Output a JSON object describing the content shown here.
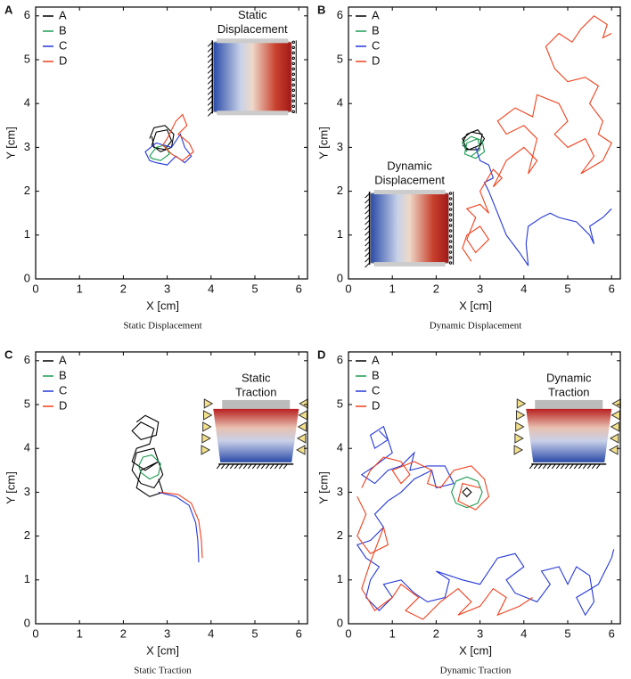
{
  "chart_data": [
    {
      "type": "line",
      "panel": "A",
      "caption": "Static Displacement",
      "xlabel": "X [cm]",
      "ylabel": "Y [cm]",
      "inset_title": [
        "Static",
        "Displacement"
      ],
      "inset_kind": "displacement",
      "xlim": [
        0,
        6.2
      ],
      "ylim": [
        0,
        6.2
      ],
      "xticks": [
        0,
        1,
        2,
        3,
        4,
        5,
        6
      ],
      "yticks": [
        0,
        1,
        2,
        3,
        4,
        5,
        6
      ],
      "legend": "upper left",
      "series": [
        {
          "name": "A",
          "color": "#000000",
          "x": [
            2.6,
            2.7,
            2.95,
            3.15,
            3.1,
            2.85,
            2.65,
            2.75,
            3.0,
            3.1,
            2.95,
            2.7,
            2.65
          ],
          "y": [
            3.2,
            3.45,
            3.5,
            3.3,
            3.0,
            2.9,
            3.05,
            3.35,
            3.4,
            3.15,
            2.95,
            3.0,
            3.25
          ]
        },
        {
          "name": "B",
          "color": "#1a9a50",
          "x": [
            2.6,
            2.75,
            2.95,
            3.05,
            2.85,
            2.65,
            2.6
          ],
          "y": [
            2.8,
            3.0,
            3.05,
            2.85,
            2.7,
            2.75,
            2.8
          ]
        },
        {
          "name": "C",
          "color": "#2438d8",
          "x": [
            2.6,
            2.5,
            2.75,
            3.1,
            3.3,
            3.4,
            3.55,
            3.4,
            3.2,
            3.0,
            2.75,
            2.6
          ],
          "y": [
            2.7,
            2.9,
            3.1,
            3.0,
            3.3,
            3.0,
            2.8,
            2.65,
            2.8,
            2.6,
            2.65,
            2.7
          ]
        },
        {
          "name": "D",
          "color": "#f0401c",
          "x": [
            3.0,
            3.2,
            3.35,
            3.45,
            3.25,
            3.5,
            3.6,
            3.35,
            3.1,
            2.9,
            3.0
          ],
          "y": [
            3.2,
            3.6,
            3.75,
            3.5,
            3.3,
            3.1,
            2.9,
            2.7,
            2.85,
            3.05,
            3.2
          ]
        }
      ]
    },
    {
      "type": "line",
      "panel": "B",
      "caption": "Dynamic Displacement",
      "xlabel": "X [cm]",
      "ylabel": "Y [cm]",
      "inset_title": [
        "Dynamic",
        "Displacement"
      ],
      "inset_kind": "displacement",
      "xlim": [
        0,
        6.2
      ],
      "ylim": [
        0,
        6.2
      ],
      "xticks": [
        0,
        1,
        2,
        3,
        4,
        5,
        6
      ],
      "yticks": [
        0,
        1,
        2,
        3,
        4,
        5,
        6
      ],
      "legend": "upper left",
      "series": [
        {
          "name": "A",
          "color": "#000000",
          "x": [
            2.6,
            2.7,
            2.95,
            3.1,
            2.95,
            2.7,
            2.6,
            2.8,
            3.05,
            3.0,
            2.75,
            2.6
          ],
          "y": [
            3.1,
            3.3,
            3.4,
            3.2,
            2.95,
            2.95,
            3.2,
            3.35,
            3.3,
            3.05,
            2.95,
            3.05
          ]
        },
        {
          "name": "B",
          "color": "#1a9a50",
          "x": [
            2.7,
            2.6,
            2.8,
            3.05,
            3.1,
            2.9,
            2.65,
            2.7,
            2.95,
            3.0,
            2.8
          ],
          "y": [
            2.9,
            3.1,
            3.25,
            3.15,
            2.9,
            2.75,
            2.85,
            3.1,
            3.2,
            2.95,
            2.8
          ]
        },
        {
          "name": "C",
          "color": "#2438d8",
          "x": [
            2.9,
            3.0,
            3.2,
            3.3,
            3.1,
            3.2,
            3.4,
            3.6,
            3.9,
            4.1,
            4.05,
            4.1,
            4.4,
            4.6,
            4.8,
            5.2,
            5.5,
            5.6,
            5.5,
            5.8,
            6.0
          ],
          "y": [
            3.0,
            2.7,
            2.6,
            2.3,
            2.2,
            2.0,
            1.5,
            1.0,
            0.6,
            0.3,
            0.8,
            1.2,
            1.4,
            1.5,
            1.4,
            1.3,
            1.0,
            0.8,
            1.2,
            1.4,
            1.6
          ]
        },
        {
          "name": "D",
          "color": "#f0401c",
          "x": [
            2.8,
            2.6,
            2.7,
            3.0,
            3.2,
            2.9,
            2.7,
            2.9,
            2.7,
            3.0,
            3.2,
            3.0,
            3.3,
            3.5,
            3.3,
            3.6,
            4.0,
            4.3,
            4.1,
            4.3,
            4.0,
            3.6,
            3.4,
            3.8,
            4.2,
            4.3,
            4.8,
            5.0,
            4.7,
            5.0,
            5.4,
            5.6,
            5.3,
            5.8,
            6.0,
            5.7,
            5.8,
            5.5,
            5.7,
            5.4,
            5.0,
            4.7,
            4.5,
            4.8,
            5.1,
            5.3,
            5.6,
            5.9,
            5.8,
            6.0
          ],
          "y": [
            0.4,
            0.7,
            1.0,
            1.2,
            0.9,
            0.6,
            0.9,
            1.4,
            1.6,
            1.7,
            1.5,
            2.0,
            2.5,
            2.3,
            2.1,
            2.7,
            3.0,
            2.7,
            2.4,
            3.2,
            3.5,
            3.3,
            3.6,
            3.9,
            3.7,
            4.2,
            4.0,
            3.6,
            3.3,
            3.0,
            3.2,
            2.8,
            2.4,
            2.7,
            3.1,
            3.3,
            3.6,
            4.0,
            4.4,
            4.6,
            4.5,
            4.8,
            5.3,
            5.6,
            5.4,
            5.7,
            6.0,
            5.8,
            5.5,
            5.6
          ]
        }
      ]
    },
    {
      "type": "line",
      "panel": "C",
      "caption": "Static Traction",
      "xlabel": "X [cm]",
      "ylabel": "Y [cm]",
      "inset_title": [
        "Static",
        "Traction"
      ],
      "inset_kind": "traction",
      "xlim": [
        0,
        6.2
      ],
      "ylim": [
        0,
        6.2
      ],
      "xticks": [
        0,
        1,
        2,
        3,
        4,
        5,
        6
      ],
      "yticks": [
        0,
        1,
        2,
        3,
        4,
        5,
        6
      ],
      "legend": "upper left",
      "series": [
        {
          "name": "A",
          "color": "#000000",
          "x": [
            2.3,
            2.5,
            2.8,
            2.75,
            2.4,
            2.2,
            2.4,
            2.7,
            2.6,
            2.3,
            2.2,
            2.5,
            2.8,
            2.7,
            2.3,
            2.2,
            2.4,
            2.7,
            2.9,
            2.8,
            2.4,
            2.3,
            2.6,
            2.9,
            2.8
          ],
          "y": [
            4.6,
            4.75,
            4.6,
            4.3,
            4.2,
            4.4,
            4.6,
            4.45,
            4.1,
            4.0,
            3.7,
            3.5,
            3.7,
            4.0,
            3.9,
            3.5,
            3.2,
            3.1,
            3.4,
            3.7,
            3.5,
            3.1,
            2.9,
            3.0,
            3.3
          ]
        },
        {
          "name": "B",
          "color": "#1a9a50",
          "x": [
            2.35,
            2.45,
            2.65,
            2.85,
            2.8,
            2.6,
            2.4,
            2.35
          ],
          "y": [
            3.6,
            3.8,
            3.85,
            3.65,
            3.4,
            3.3,
            3.45,
            3.6
          ]
        },
        {
          "name": "C",
          "color": "#2438d8",
          "x": [
            2.8,
            3.2,
            3.5,
            3.65,
            3.7,
            3.72
          ],
          "y": [
            3.0,
            2.9,
            2.7,
            2.3,
            1.9,
            1.4
          ]
        },
        {
          "name": "D",
          "color": "#f0401c",
          "x": [
            2.85,
            3.25,
            3.55,
            3.72,
            3.78,
            3.8
          ],
          "y": [
            3.0,
            2.95,
            2.75,
            2.35,
            1.9,
            1.5
          ]
        }
      ]
    },
    {
      "type": "line",
      "panel": "D",
      "caption": "Dynamic Traction",
      "xlabel": "X [cm]",
      "ylabel": "Y [cm]",
      "inset_title": [
        "Dynamic",
        "Traction"
      ],
      "inset_kind": "traction",
      "xlim": [
        0,
        6.2
      ],
      "ylim": [
        0,
        6.2
      ],
      "xticks": [
        0,
        1,
        2,
        3,
        4,
        5,
        6
      ],
      "yticks": [
        0,
        1,
        2,
        3,
        4,
        5,
        6
      ],
      "legend": "upper left",
      "series": [
        {
          "name": "A",
          "color": "#000000",
          "x": [
            2.6,
            2.7,
            2.8,
            2.7,
            2.6
          ],
          "y": [
            3.0,
            3.1,
            3.0,
            2.9,
            3.0
          ]
        },
        {
          "name": "B",
          "color": "#1a9a50",
          "x": [
            3.05,
            2.95,
            2.7,
            2.45,
            2.35,
            2.45,
            2.7,
            2.95,
            3.05
          ],
          "y": [
            3.0,
            3.25,
            3.35,
            3.25,
            3.0,
            2.75,
            2.65,
            2.75,
            3.0
          ]
        },
        {
          "name": "C",
          "color": "#2438d8",
          "x": [
            0.7,
            0.9,
            0.6,
            0.5,
            0.8,
            1.0,
            0.6,
            0.3,
            0.6,
            0.9,
            1.2,
            1.5,
            1.4,
            1.8,
            2.2,
            2.4,
            2.0,
            1.9,
            1.5,
            1.2,
            0.9,
            0.6,
            0.8,
            0.5,
            0.2,
            0.4,
            0.7,
            0.5,
            0.4,
            0.7,
            1.0,
            0.8,
            1.2,
            1.5,
            1.8,
            2.2,
            2.3,
            2.0,
            2.6,
            3.0,
            3.2,
            3.4,
            3.8,
            4.0,
            3.6,
            3.8,
            4.3,
            4.6,
            4.4,
            4.8,
            5.0,
            5.2,
            5.5,
            5.6,
            5.4,
            5.2,
            5.7,
            6.0,
            6.05
          ],
          "y": [
            4.4,
            4.2,
            4.0,
            4.3,
            4.5,
            3.9,
            3.6,
            3.4,
            3.2,
            3.5,
            3.6,
            3.9,
            3.5,
            3.6,
            3.6,
            3.2,
            3.1,
            3.5,
            3.3,
            3.0,
            2.8,
            2.5,
            2.2,
            1.9,
            1.8,
            1.5,
            1.3,
            1.0,
            0.6,
            0.3,
            0.6,
            0.9,
            1.0,
            0.7,
            0.5,
            0.6,
            1.0,
            1.2,
            1.0,
            0.9,
            1.2,
            1.5,
            1.6,
            1.3,
            1.0,
            0.7,
            0.5,
            0.9,
            1.2,
            1.3,
            0.9,
            1.3,
            1.1,
            0.5,
            0.2,
            0.6,
            0.9,
            1.5,
            1.7
          ]
        },
        {
          "name": "D",
          "color": "#f0401c",
          "x": [
            0.3,
            0.5,
            0.8,
            1.2,
            1.4,
            1.2,
            1.0,
            1.5,
            1.9,
            1.8,
            2.1,
            2.4,
            2.8,
            3.1,
            3.2,
            2.9,
            2.5,
            2.6,
            3.0,
            null,
            0.2,
            0.4,
            0.2,
            0.5,
            0.9,
            0.8,
            0.5,
            0.3,
            0.6,
            1.0,
            1.2,
            1.6,
            1.3,
            1.7,
            2.1,
            2.5,
            2.8,
            2.5,
            3.0,
            3.3,
            3.6,
            3.4,
            3.9,
            4.2
          ],
          "y": [
            3.1,
            3.5,
            3.8,
            3.7,
            3.4,
            3.2,
            3.5,
            3.7,
            3.5,
            3.2,
            3.1,
            3.5,
            3.6,
            3.3,
            2.9,
            2.6,
            2.8,
            3.2,
            3.1,
            null,
            2.9,
            2.5,
            2.0,
            1.6,
            1.8,
            2.2,
            1.4,
            0.8,
            0.3,
            0.6,
            0.9,
            0.6,
            0.3,
            0.1,
            0.5,
            0.8,
            0.5,
            0.2,
            0.4,
            0.8,
            0.6,
            0.2,
            0.4,
            0.6
          ]
        }
      ]
    }
  ]
}
